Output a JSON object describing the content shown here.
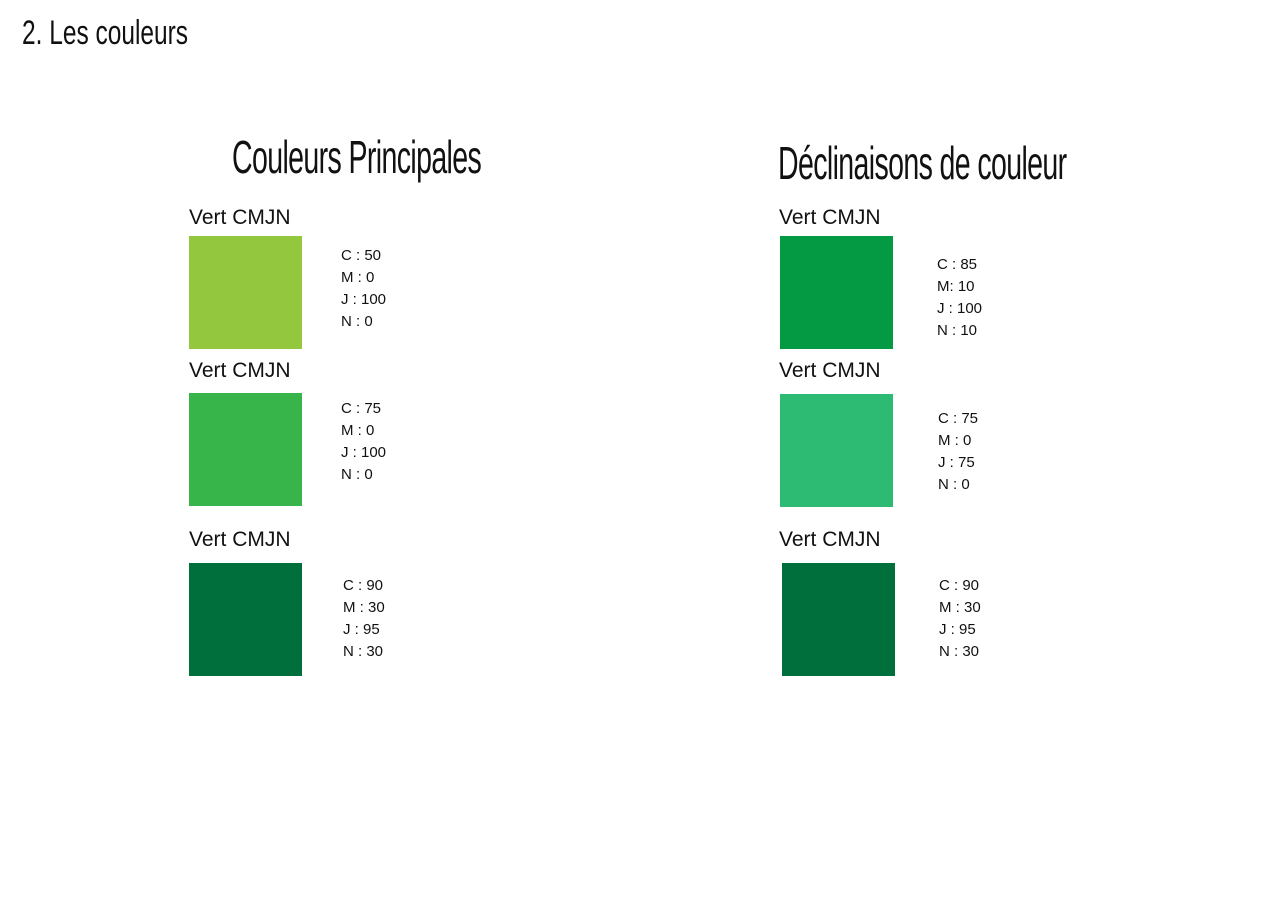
{
  "header": {
    "title": "2. Les couleurs"
  },
  "columns": [
    {
      "heading": "Couleurs Principales",
      "swatches": [
        {
          "label": "Vert CMJN",
          "color": "#93c83e",
          "lines": [
            "C : 50",
            "M : 0",
            "J : 100",
            "N : 0"
          ]
        },
        {
          "label": "Vert CMJN",
          "color": "#37b54a",
          "lines": [
            "C : 75",
            "M : 0",
            "J : 100",
            "N : 0"
          ]
        },
        {
          "label": "Vert CMJN",
          "color": "#006f3c",
          "lines": [
            "C : 90",
            "M : 30",
            "J : 95",
            "N : 30"
          ]
        }
      ]
    },
    {
      "heading": "Déclinaisons de couleur",
      "swatches": [
        {
          "label": "Vert CMJN",
          "color": "#049a43",
          "lines": [
            "C : 85",
            "M: 10",
            "J : 100",
            "N : 10"
          ]
        },
        {
          "label": "Vert CMJN",
          "color": "#2dba72",
          "lines": [
            "C : 75",
            "M : 0",
            "J : 75",
            "N : 0"
          ]
        },
        {
          "label": "Vert CMJN",
          "color": "#006f3c",
          "lines": [
            "C : 90",
            "M : 30",
            "J : 95",
            "N : 30"
          ]
        }
      ]
    }
  ]
}
